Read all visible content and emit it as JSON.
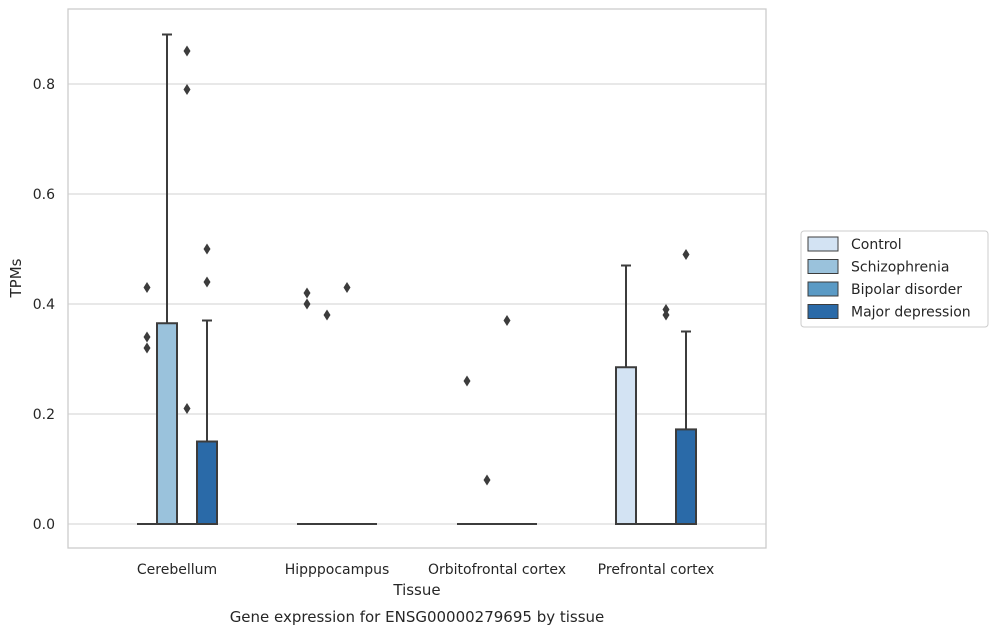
{
  "caption": "Gene expression for ENSG00000279695 by tissue",
  "chart_data": {
    "type": "box",
    "title": "",
    "xlabel": "Tissue",
    "ylabel": "TPMs",
    "ylim": [
      -0.043,
      0.935
    ],
    "yticks": [
      0.0,
      0.2,
      0.4,
      0.6,
      0.8
    ],
    "ytick_labels": [
      "0.0",
      "0.2",
      "0.4",
      "0.6",
      "0.8"
    ],
    "grid": "horizontal",
    "legend_position": "right",
    "categories": [
      "Cerebellum",
      "Hipppocampus",
      "Orbitofrontal cortex",
      "Prefrontal cortex"
    ],
    "series": [
      {
        "name": "Control",
        "color": "#d3e3f3",
        "boxes": [
          {
            "q1": 0,
            "median": 0,
            "q3": 0,
            "whisker_low": 0,
            "whisker_high": 0,
            "outliers": [
              0.43,
              0.34,
              0.32
            ]
          },
          {
            "q1": 0,
            "median": 0,
            "q3": 0,
            "whisker_low": 0,
            "whisker_high": 0,
            "outliers": [
              0.42,
              0.4
            ]
          },
          {
            "q1": 0,
            "median": 0,
            "q3": 0,
            "whisker_low": 0,
            "whisker_high": 0,
            "outliers": [
              0.26
            ]
          },
          {
            "q1": 0,
            "median": 0,
            "q3": 0.285,
            "whisker_low": 0,
            "whisker_high": 0.47,
            "outliers": []
          }
        ]
      },
      {
        "name": "Schizophrenia",
        "color": "#9ac2dc",
        "boxes": [
          {
            "q1": 0,
            "median": 0,
            "q3": 0.365,
            "whisker_low": 0,
            "whisker_high": 0.89,
            "outliers": []
          },
          {
            "q1": 0,
            "median": 0,
            "q3": 0,
            "whisker_low": 0,
            "whisker_high": 0,
            "outliers": [
              0.38
            ]
          },
          {
            "q1": 0,
            "median": 0,
            "q3": 0,
            "whisker_low": 0,
            "whisker_high": 0,
            "outliers": [
              0.08
            ]
          },
          {
            "q1": 0,
            "median": 0,
            "q3": 0,
            "whisker_low": 0,
            "whisker_high": 0,
            "outliers": []
          }
        ]
      },
      {
        "name": "Bipolar disorder",
        "color": "#5a9ac5",
        "boxes": [
          {
            "q1": 0,
            "median": 0,
            "q3": 0,
            "whisker_low": 0,
            "whisker_high": 0,
            "outliers": [
              0.86,
              0.79,
              0.21
            ]
          },
          {
            "q1": 0,
            "median": 0,
            "q3": 0,
            "whisker_low": 0,
            "whisker_high": 0,
            "outliers": [
              0.43
            ]
          },
          {
            "q1": 0,
            "median": 0,
            "q3": 0,
            "whisker_low": 0,
            "whisker_high": 0,
            "outliers": [
              0.37
            ]
          },
          {
            "q1": 0,
            "median": 0,
            "q3": 0,
            "whisker_low": 0,
            "whisker_high": 0,
            "outliers": [
              0.39,
              0.38
            ]
          }
        ]
      },
      {
        "name": "Major depression",
        "color": "#2a6aa8",
        "boxes": [
          {
            "q1": 0,
            "median": 0,
            "q3": 0.15,
            "whisker_low": 0,
            "whisker_high": 0.37,
            "outliers": [
              0.5,
              0.44
            ]
          },
          {
            "q1": 0,
            "median": 0,
            "q3": 0,
            "whisker_low": 0,
            "whisker_high": 0,
            "outliers": []
          },
          {
            "q1": 0,
            "median": 0,
            "q3": 0,
            "whisker_low": 0,
            "whisker_high": 0,
            "outliers": []
          },
          {
            "q1": 0,
            "median": 0,
            "q3": 0.172,
            "whisker_low": 0,
            "whisker_high": 0.35,
            "outliers": [
              0.49
            ]
          }
        ]
      }
    ]
  }
}
